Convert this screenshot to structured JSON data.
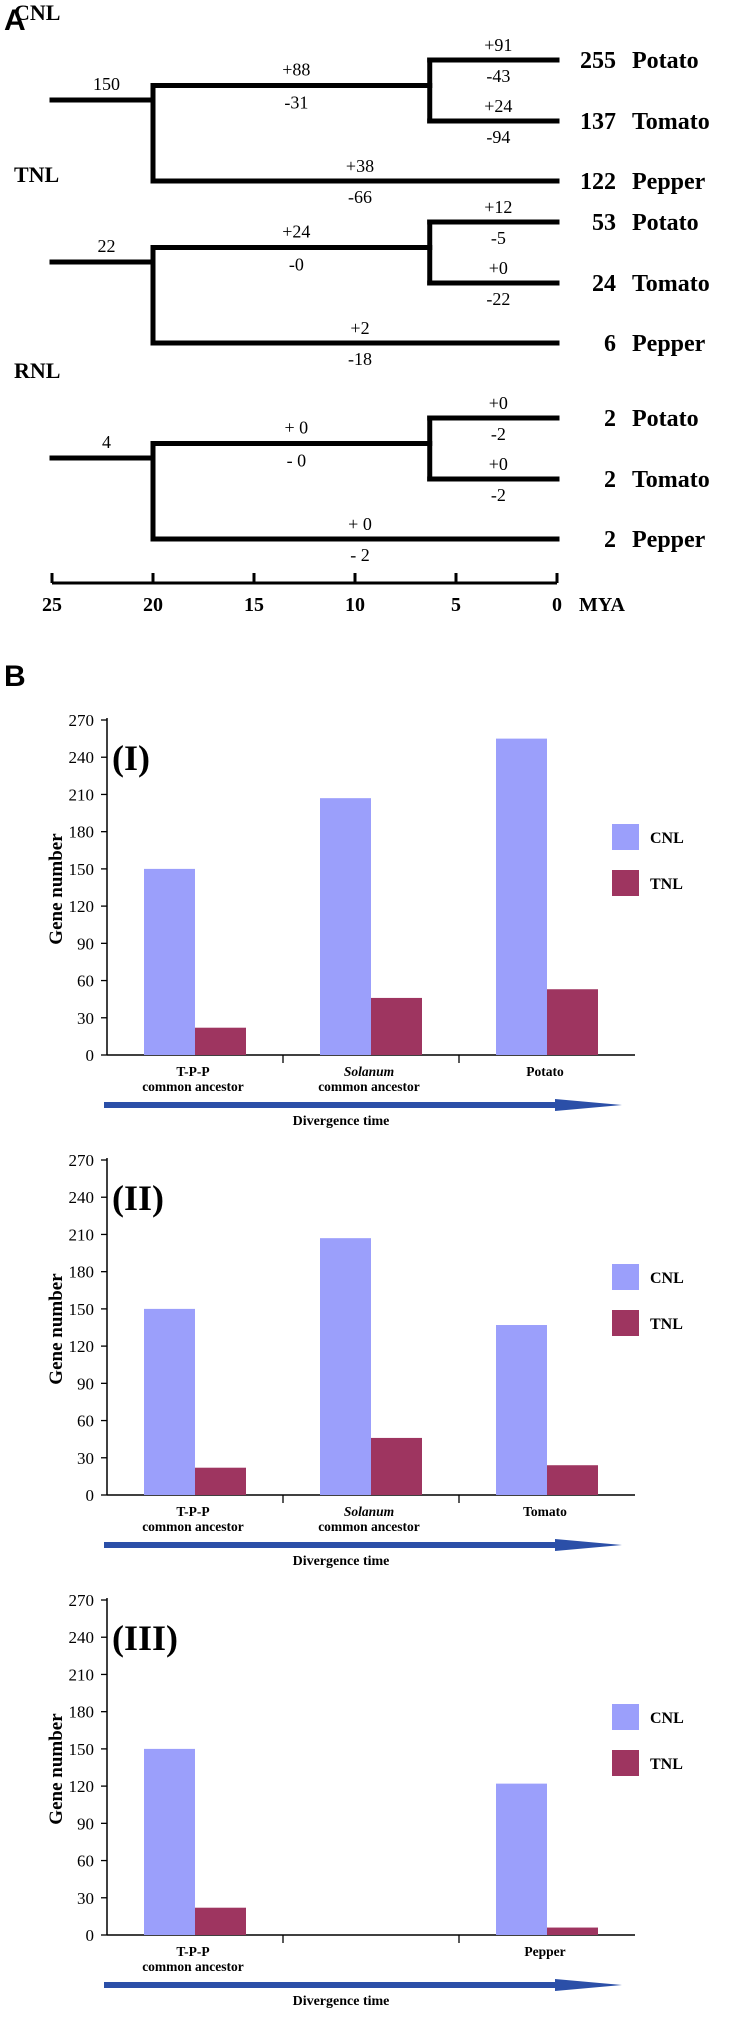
{
  "panel_a": {
    "letter": "A",
    "axis_ticks": [
      "25",
      "20",
      "15",
      "10",
      "5",
      "0"
    ],
    "axis_unit": "MYA",
    "trees": [
      {
        "family": "CNL",
        "root_count": "150",
        "ancestor_gain": "+88",
        "ancestor_loss": "-31",
        "leaves": [
          {
            "gain": "+91",
            "loss": "-43",
            "count": "255",
            "species": "Potato"
          },
          {
            "gain": "+24",
            "loss": "-94",
            "count": "137",
            "species": "Tomato"
          },
          {
            "gain": "+38",
            "loss": "-66",
            "count": "122",
            "species": "Pepper"
          }
        ]
      },
      {
        "family": "TNL",
        "root_count": "22",
        "ancestor_gain": "+24",
        "ancestor_loss": "-0",
        "leaves": [
          {
            "gain": "+12",
            "loss": "-5",
            "count": "53",
            "species": "Potato"
          },
          {
            "gain": "+0",
            "loss": "-22",
            "count": "24",
            "species": "Tomato"
          },
          {
            "gain": "+2",
            "loss": "-18",
            "count": "6",
            "species": "Pepper"
          }
        ]
      },
      {
        "family": "RNL",
        "root_count": "4",
        "ancestor_gain": "+ 0",
        "ancestor_loss": "- 0",
        "leaves": [
          {
            "gain": "+0",
            "loss": "-2",
            "count": "2",
            "species": "Potato"
          },
          {
            "gain": "+0",
            "loss": "-2",
            "count": "2",
            "species": "Tomato"
          },
          {
            "gain": "+ 0",
            "loss": "- 2",
            "count": "2",
            "species": "Pepper"
          }
        ]
      }
    ]
  },
  "panel_b": {
    "letter": "B",
    "colors": {
      "CNL": "#9b9ffb",
      "TNL": "#9e3560",
      "arrow": "#2b4fa8"
    },
    "arrow_label": "Divergence time",
    "y_ticks": [
      "0",
      "30",
      "60",
      "90",
      "120",
      "150",
      "180",
      "210",
      "240",
      "270"
    ]
  },
  "chart_data": [
    {
      "type": "bar",
      "title": "(I)",
      "ylabel": "Gene number",
      "ylim": [
        0,
        270
      ],
      "legend_position": "right",
      "categories": [
        [
          "T-P-P",
          "common ancestor"
        ],
        [
          "Solanum",
          "common ancestor"
        ],
        [
          "Potato"
        ]
      ],
      "series": [
        {
          "name": "CNL",
          "values": [
            150,
            207,
            255
          ]
        },
        {
          "name": "TNL",
          "values": [
            22,
            46,
            53
          ]
        }
      ]
    },
    {
      "type": "bar",
      "title": "(II)",
      "ylabel": "Gene number",
      "ylim": [
        0,
        270
      ],
      "legend_position": "right",
      "categories": [
        [
          "T-P-P",
          "common ancestor"
        ],
        [
          "Solanum",
          "common ancestor"
        ],
        [
          "Tomato"
        ]
      ],
      "series": [
        {
          "name": "CNL",
          "values": [
            150,
            207,
            137
          ]
        },
        {
          "name": "TNL",
          "values": [
            22,
            46,
            24
          ]
        }
      ]
    },
    {
      "type": "bar",
      "title": "(III)",
      "ylabel": "Gene number",
      "ylim": [
        0,
        270
      ],
      "legend_position": "right",
      "categories": [
        [
          "T-P-P",
          "common ancestor"
        ],
        [],
        [
          "Pepper"
        ]
      ],
      "series": [
        {
          "name": "CNL",
          "values": [
            150,
            null,
            122
          ]
        },
        {
          "name": "TNL",
          "values": [
            22,
            null,
            6
          ]
        }
      ]
    }
  ]
}
